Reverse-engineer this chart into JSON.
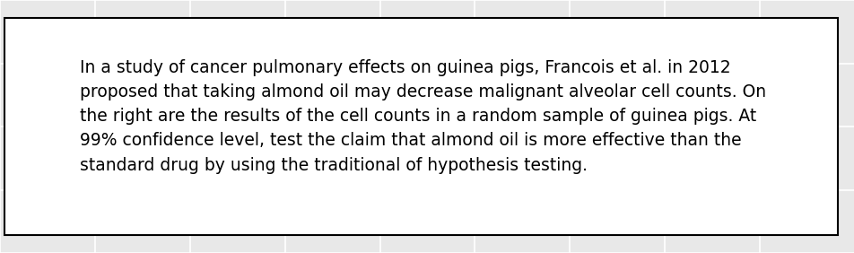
{
  "text_lines": [
    "In a study of cancer pulmonary effects on guinea pigs, Francois et al. in 2012",
    "proposed that taking almond oil may decrease malignant alveolar cell counts. On",
    "the right are the results of the cell counts in a random sample of guinea pigs. At",
    "99% confidence level, test the claim that almond oil is more effective than the",
    "standard drug by using the traditional of hypothesis testing."
  ],
  "background_color": "#e8e8e8",
  "box_facecolor": "#ffffff",
  "box_edgecolor": "#000000",
  "text_color": "#000000",
  "font_size": 13.5,
  "grid_color": "#ffffff",
  "grid_linewidth": 1.2,
  "n_vcols": 9,
  "n_hrows": 4
}
